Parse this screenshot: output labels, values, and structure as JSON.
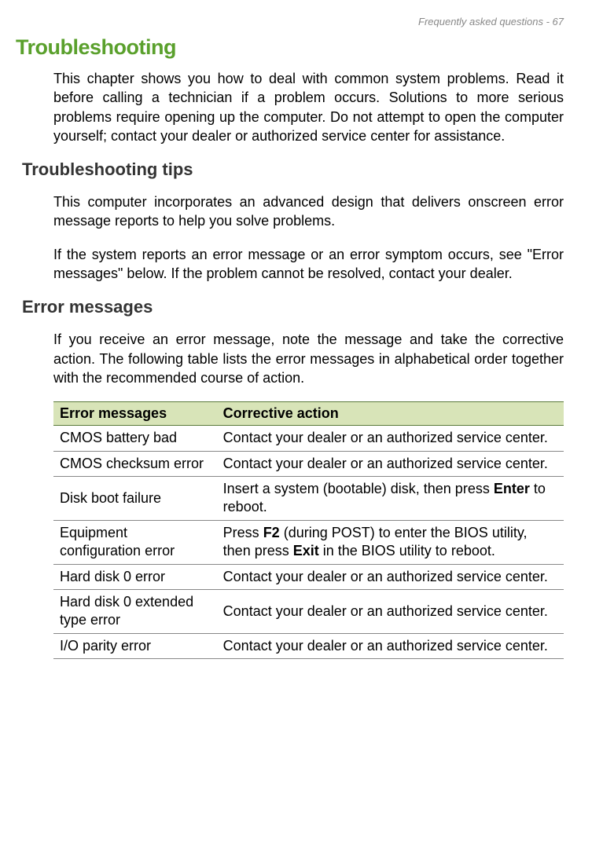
{
  "header": {
    "text": "Frequently asked questions - 67"
  },
  "title": {
    "text": "Troubleshooting",
    "color": "#5aa02c"
  },
  "intro": {
    "text": "This chapter shows you how to deal with common system problems. Read it before calling a technician if a problem occurs. Solutions to more serious problems require opening up the computer. Do not attempt to open the computer yourself; contact your dealer or authorized service center for assistance."
  },
  "tips": {
    "heading": "Troubleshooting tips",
    "para1": "This computer incorporates an advanced design that delivers onscreen error message reports to help you solve problems.",
    "para2": "If the system reports an error message or an error symptom occurs, see \"Error messages\" below. If the problem cannot be resolved, contact your dealer."
  },
  "errors": {
    "heading": "Error messages",
    "intro": "If you receive an error message, note the message and take the corrective action. The following table lists the error messages in alphabetical order together with the recommended course of action."
  },
  "table": {
    "header_bg": "#d8e4b8",
    "col1": "Error messages",
    "col2": "Corrective action",
    "rows": [
      {
        "msg": "CMOS battery bad",
        "action": "Contact your dealer or an authorized service center."
      },
      {
        "msg": "CMOS checksum error",
        "action": "Contact your dealer or an authorized service center."
      },
      {
        "msg": "Disk boot failure",
        "action_pre": "Insert a system (bootable) disk, then press ",
        "action_bold": "Enter",
        "action_post": " to reboot."
      },
      {
        "msg": "Equipment configuration error",
        "action_pre": "Press ",
        "action_bold1": "F2",
        "action_mid": " (during POST) to enter the BIOS utility, then press ",
        "action_bold2": "Exit",
        "action_post": " in the BIOS utility to reboot."
      },
      {
        "msg": "Hard disk 0 error",
        "action": "Contact your dealer or an authorized service center."
      },
      {
        "msg": "Hard disk 0 extended type error",
        "action": "Contact your dealer or an authorized service center."
      },
      {
        "msg": "I/O parity error",
        "action": "Contact your dealer or an authorized service center."
      }
    ]
  }
}
